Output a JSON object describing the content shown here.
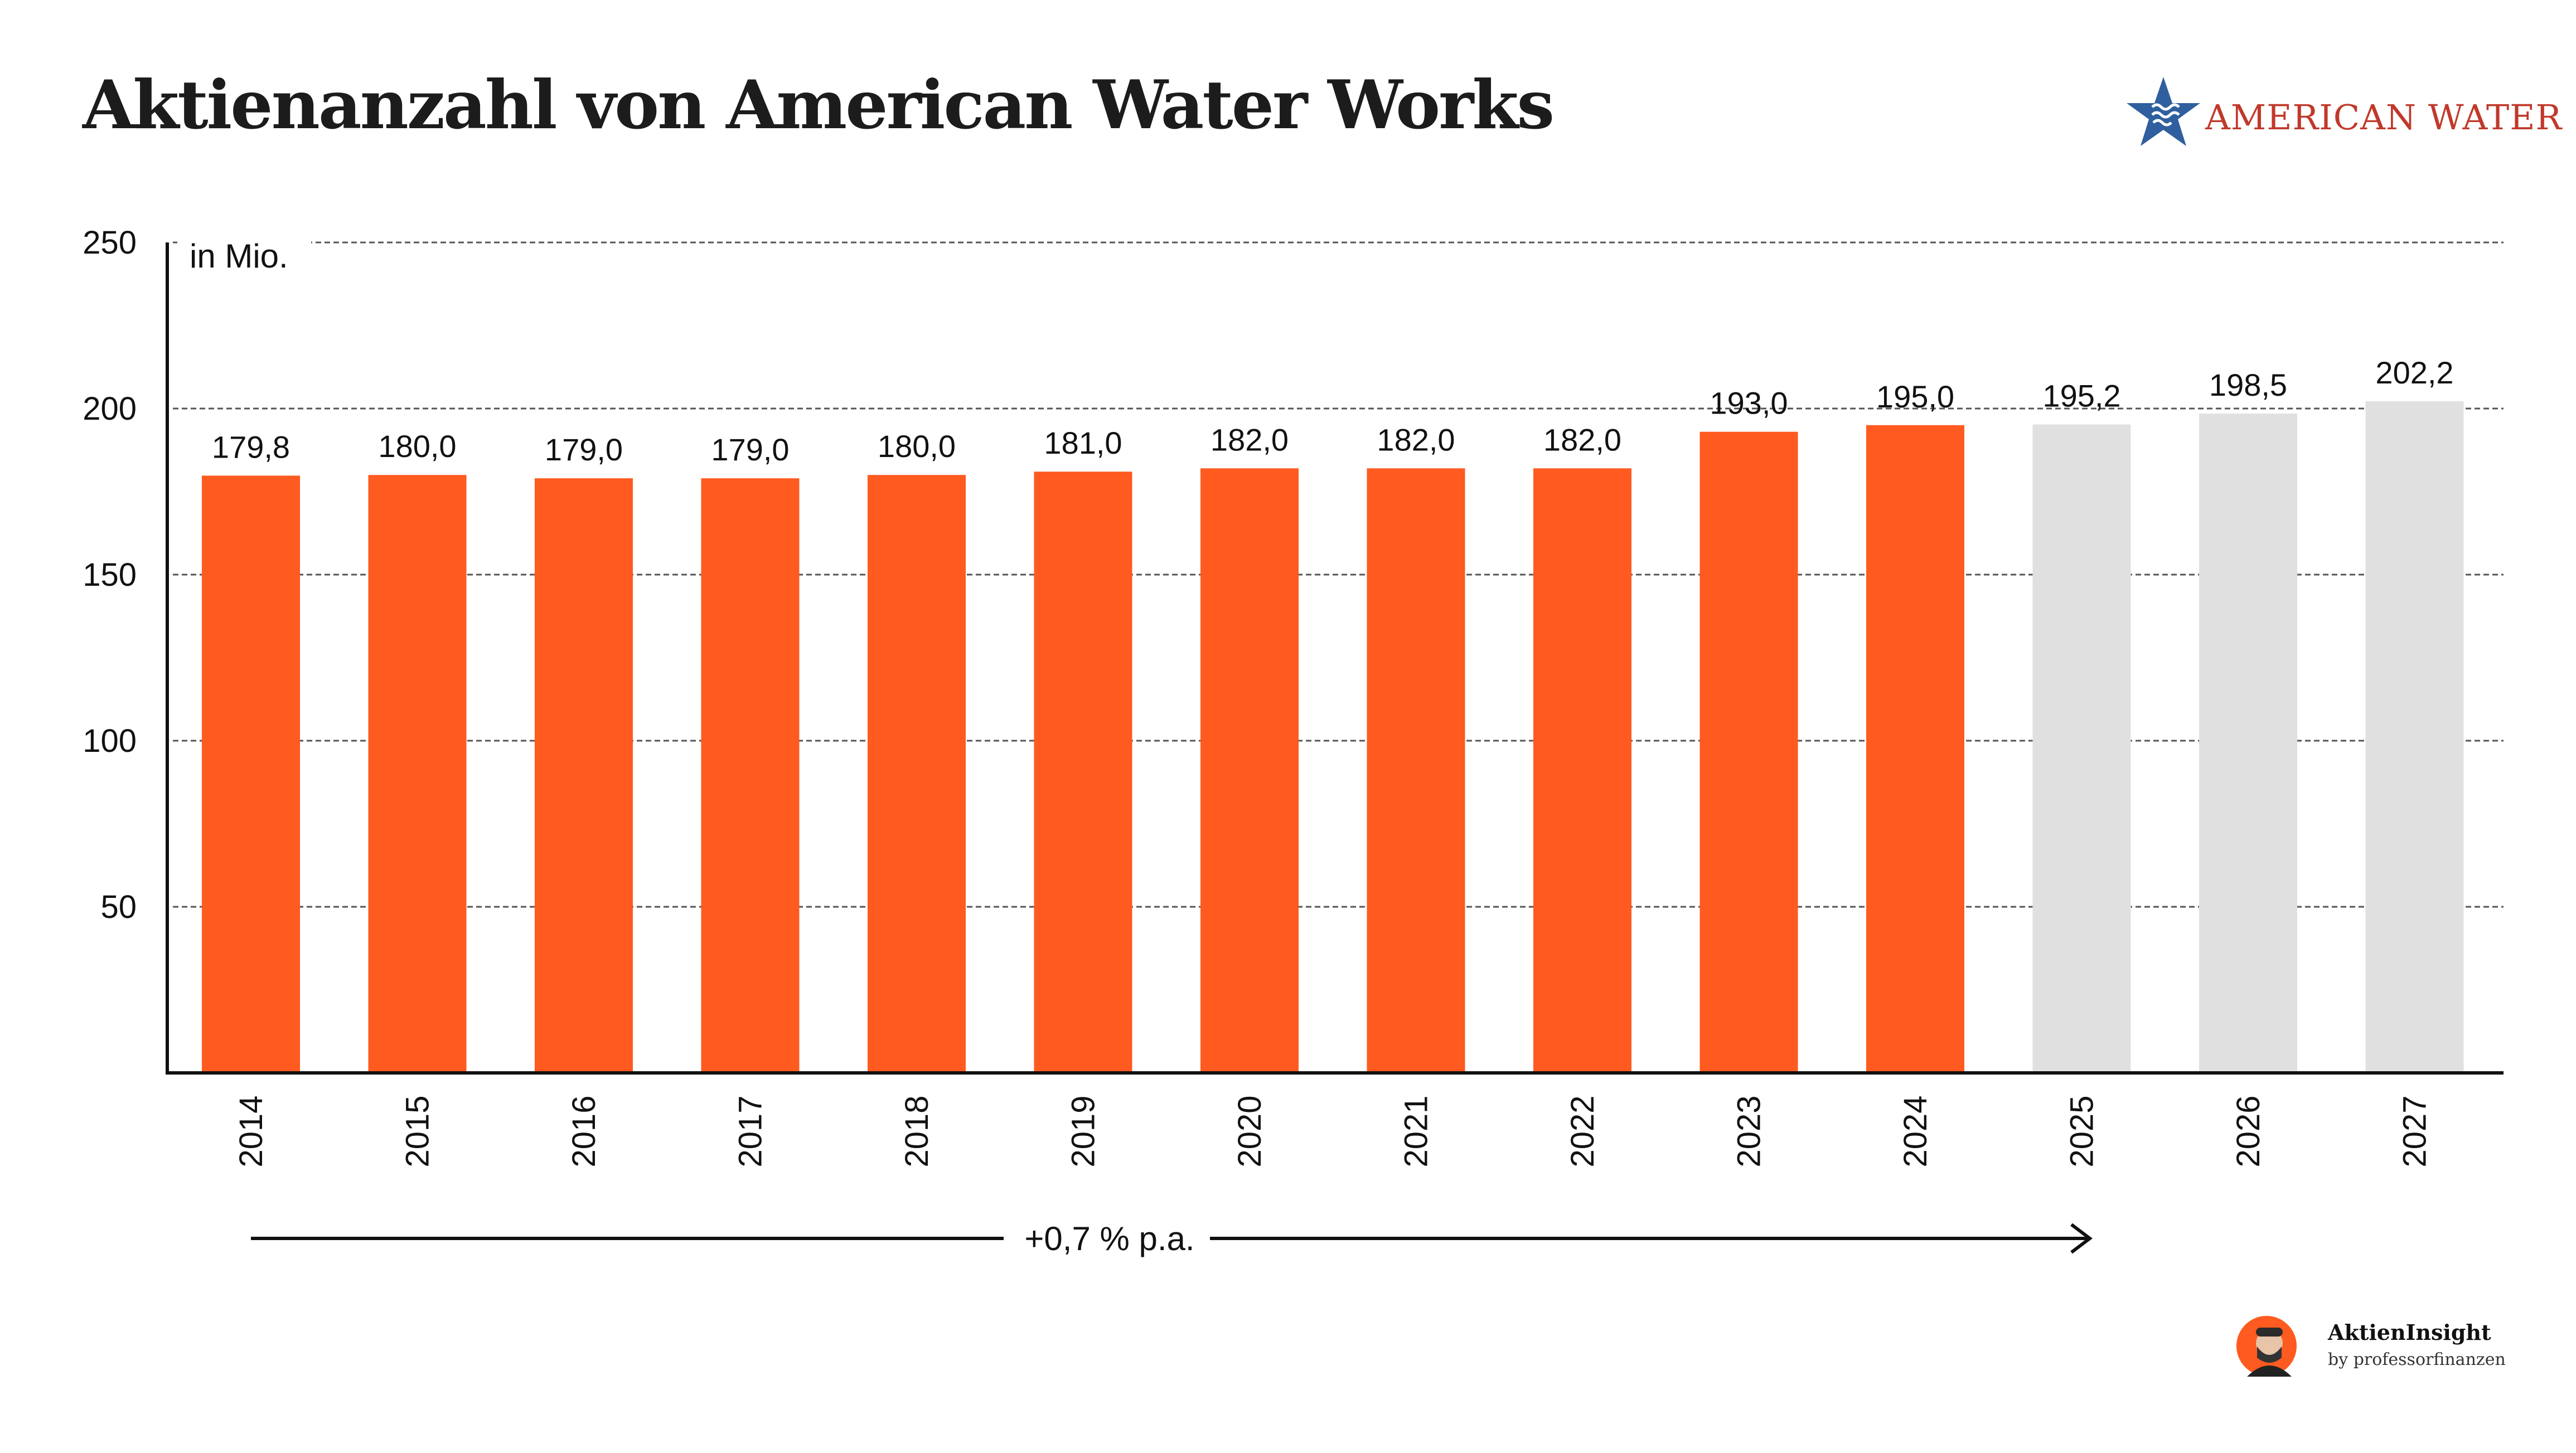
{
  "title": "Aktienanzahl von American Water Works",
  "logo": {
    "text": "American Water",
    "icon": "star-water-icon",
    "color": "#c0392b",
    "star_color": "#2f5f9e"
  },
  "chart_data": {
    "type": "bar",
    "unit_label": "in Mio.",
    "categories": [
      "2014",
      "2015",
      "2016",
      "2017",
      "2018",
      "2019",
      "2020",
      "2021",
      "2022",
      "2023",
      "2024",
      "2025",
      "2026",
      "2027"
    ],
    "values": [
      179.8,
      180.0,
      179.0,
      179.0,
      180.0,
      181.0,
      182.0,
      182.0,
      182.0,
      193.0,
      195.0,
      195.2,
      198.5,
      202.2
    ],
    "value_labels": [
      "179,8",
      "180,0",
      "179,0",
      "179,0",
      "180,0",
      "181,0",
      "182,0",
      "182,0",
      "182,0",
      "193,0",
      "195,0",
      "195,2",
      "198,5",
      "202,2"
    ],
    "kind": [
      "actual",
      "actual",
      "actual",
      "actual",
      "actual",
      "actual",
      "actual",
      "actual",
      "actual",
      "actual",
      "actual",
      "estimate",
      "estimate",
      "estimate"
    ],
    "colors": {
      "actual": "#ff5a1f",
      "estimate": "#e0e0e0"
    },
    "ylim": [
      0,
      250
    ],
    "yticks": [
      50,
      100,
      150,
      200,
      250
    ],
    "grid": true,
    "growth_annotation": "+0,7 % p.a.",
    "xlabel": "",
    "ylabel": ""
  },
  "branding": {
    "name": "AktienInsight",
    "sub": "by professorfinanzen"
  }
}
